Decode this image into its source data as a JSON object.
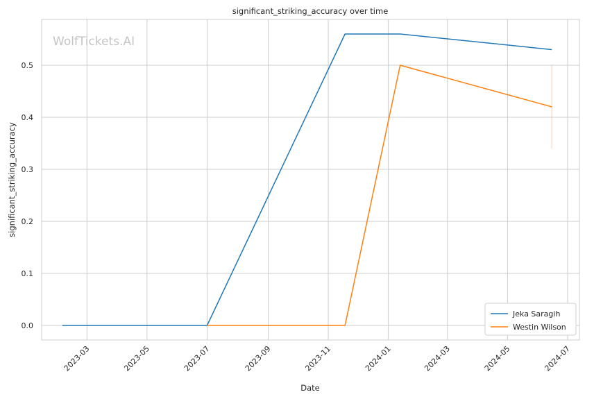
{
  "chart_data": {
    "type": "line",
    "title": "significant_striking_accuracy over time",
    "xlabel": "Date",
    "ylabel": "significant_striking_accuracy",
    "watermark": "WolfTickets.AI",
    "x_ticks": [
      "2023-03",
      "2023-05",
      "2023-07",
      "2023-09",
      "2023-11",
      "2024-01",
      "2024-03",
      "2024-05",
      "2024-07"
    ],
    "y_ticks": [
      "0.0",
      "0.1",
      "0.2",
      "0.3",
      "0.4",
      "0.5"
    ],
    "xlim": [
      "2023-01-14",
      "2024-07-13"
    ],
    "ylim": [
      -0.028,
      0.588
    ],
    "grid": true,
    "legend_position": "lower-right",
    "series": [
      {
        "name": "Jeka Saragih",
        "color": "#1f77b4",
        "points": [
          {
            "x": "2023-02-04",
            "y": 0.0
          },
          {
            "x": "2023-07-01",
            "y": 0.0
          },
          {
            "x": "2023-11-18",
            "y": 0.56
          },
          {
            "x": "2024-01-13",
            "y": 0.56
          },
          {
            "x": "2024-06-15",
            "y": 0.53
          }
        ]
      },
      {
        "name": "Westin Wilson",
        "color": "#ff7f0e",
        "points": [
          {
            "x": "2023-07-01",
            "y": 0.0
          },
          {
            "x": "2023-11-18",
            "y": 0.0
          },
          {
            "x": "2024-01-13",
            "y": 0.5
          },
          {
            "x": "2024-06-15",
            "y": 0.42
          }
        ]
      }
    ],
    "error_band": {
      "series": "Westin Wilson",
      "x": "2024-06-15",
      "low": 0.34,
      "high": 0.5
    }
  }
}
